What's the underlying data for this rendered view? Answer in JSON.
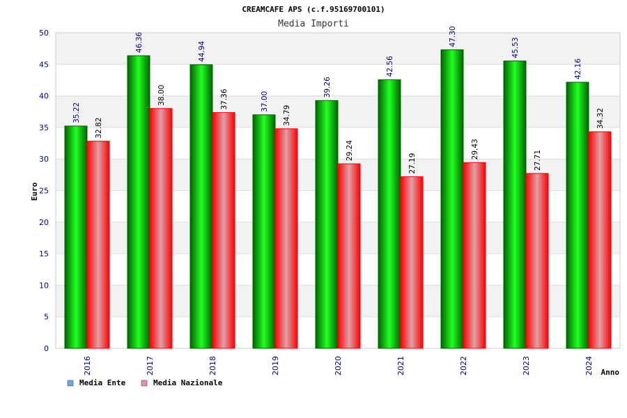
{
  "chart_data": {
    "type": "bar",
    "title": "CREAMCAFE APS (c.f.95169700101)",
    "subtitle": "Media Importi",
    "xlabel": "Anno",
    "ylabel": "Euro",
    "ylim": [
      0,
      50
    ],
    "yticks": [
      "0",
      "5",
      "10",
      "15",
      "20",
      "25",
      "30",
      "35",
      "40",
      "45",
      "50"
    ],
    "categories": [
      "2016",
      "2017",
      "2018",
      "2019",
      "2020",
      "2021",
      "2022",
      "2023",
      "2024"
    ],
    "series": [
      {
        "name": "Media Ente",
        "values": [
          35.22,
          46.36,
          44.94,
          37.0,
          39.26,
          42.56,
          47.3,
          45.53,
          42.16
        ],
        "labels": [
          "35.22",
          "46.36",
          "44.94",
          "37.00",
          "39.26",
          "42.56",
          "47.30",
          "45.53",
          "42.16"
        ],
        "label_color": "#000080",
        "color_dark": "#006400",
        "color_light": "#22ff22",
        "legend_swatch": "#6ca6e8"
      },
      {
        "name": "Media Nazionale",
        "values": [
          32.82,
          38.0,
          37.36,
          34.79,
          29.24,
          27.19,
          29.43,
          27.71,
          34.32
        ],
        "labels": [
          "32.82",
          "38.00",
          "37.36",
          "34.79",
          "29.24",
          "27.19",
          "29.43",
          "27.71",
          "34.32"
        ],
        "label_color": "#000000",
        "color_dark": "#ff0000",
        "color_light": "#dca0a8",
        "legend_swatch": "#e88cc0"
      }
    ],
    "grid": true,
    "legend_position": "bottom-left",
    "colors": {
      "band": "#f2f2f2",
      "gridline": "#dcdcdc",
      "frame": "#cccccc",
      "axis_text": "#00008b",
      "title_text": "#000000",
      "subtitle_text": "#333333"
    }
  }
}
